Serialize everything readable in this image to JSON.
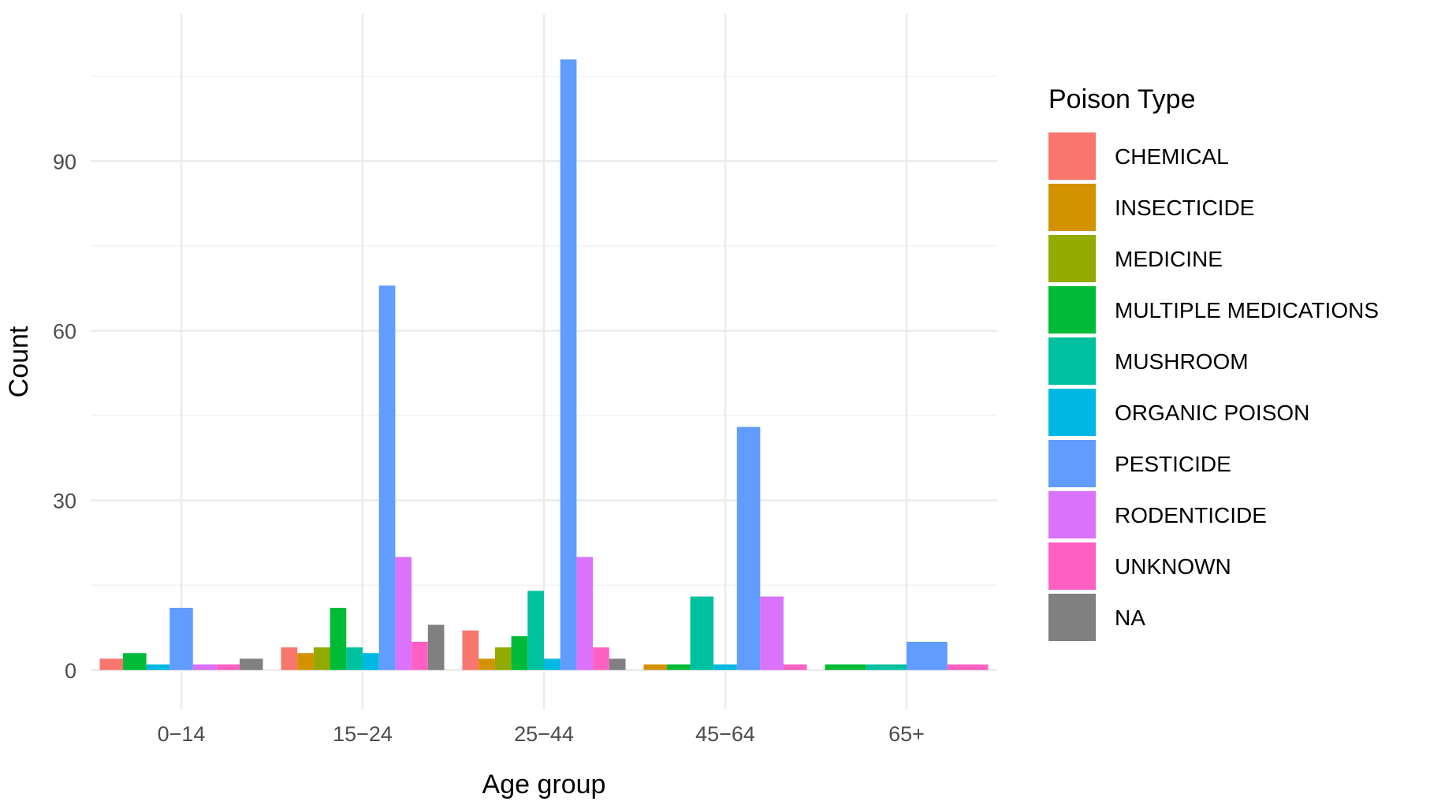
{
  "chart_data": {
    "type": "bar",
    "xlabel": "Age group",
    "ylabel": "Count",
    "ylim": [
      -7,
      116
    ],
    "yticks": [
      0,
      30,
      60,
      90
    ],
    "grid": true,
    "legend_position": "right",
    "legend_title": "Poison Type",
    "categories": [
      "0−14",
      "15−24",
      "25−44",
      "45−64",
      "65+"
    ],
    "series": [
      {
        "name": "CHEMICAL",
        "color": "#F8766D",
        "values": [
          2,
          4,
          7,
          null,
          null
        ]
      },
      {
        "name": "INSECTICIDE",
        "color": "#D39200",
        "values": [
          null,
          3,
          2,
          1,
          null
        ]
      },
      {
        "name": "MEDICINE",
        "color": "#93AA00",
        "values": [
          null,
          4,
          4,
          null,
          null
        ]
      },
      {
        "name": "MULTIPLE MEDICATIONS",
        "color": "#00BA38",
        "values": [
          3,
          11,
          6,
          1,
          1
        ]
      },
      {
        "name": "MUSHROOM",
        "color": "#00C19F",
        "values": [
          null,
          4,
          14,
          13,
          1
        ]
      },
      {
        "name": "ORGANIC POISON",
        "color": "#00B9E3",
        "values": [
          1,
          3,
          2,
          1,
          null
        ]
      },
      {
        "name": "PESTICIDE",
        "color": "#619CFF",
        "values": [
          11,
          68,
          108,
          43,
          5
        ]
      },
      {
        "name": "RODENTICIDE",
        "color": "#DB72FB",
        "values": [
          1,
          20,
          20,
          13,
          null
        ]
      },
      {
        "name": "UNKNOWN",
        "color": "#FF61C3",
        "values": [
          1,
          5,
          4,
          1,
          1
        ]
      },
      {
        "name": "NA",
        "color": "#808080",
        "values": [
          2,
          8,
          2,
          null,
          null
        ]
      }
    ]
  }
}
